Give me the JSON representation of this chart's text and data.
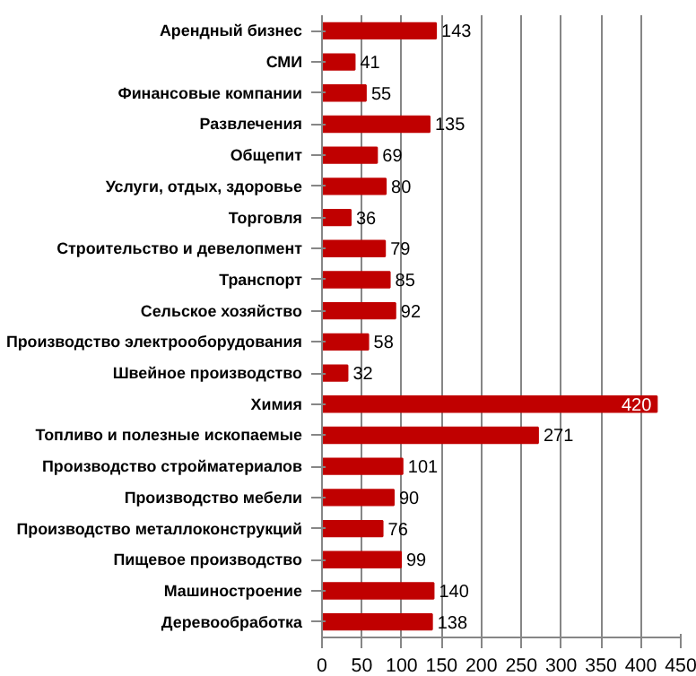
{
  "chart_data": {
    "type": "bar",
    "orientation": "horizontal",
    "categories": [
      "Арендный бизнес",
      "СМИ",
      "Финансовые компании",
      "Развлечения",
      "Общепит",
      "Услуги, отдых, здоровье",
      "Торговля",
      "Строительство и девелопмент",
      "Транспорт",
      "Сельское хозяйство",
      "Производство электрооборудования",
      "Швейное производство",
      "Химия",
      "Топливо и полезные ископаемые",
      "Производство стройматериалов",
      "Производство мебели",
      "Производство металлоконструкций",
      "Пищевое производство",
      "Машиностроение",
      "Деревообработка"
    ],
    "values": [
      143,
      41,
      55,
      135,
      69,
      80,
      36,
      79,
      85,
      92,
      58,
      32,
      420,
      271,
      101,
      90,
      76,
      99,
      140,
      138
    ],
    "color": "#c00000",
    "xlim": [
      0,
      450
    ],
    "xticks": [
      0,
      50,
      100,
      150,
      200,
      250,
      300,
      350,
      400,
      450
    ],
    "grid": "x",
    "data_labels": true
  }
}
